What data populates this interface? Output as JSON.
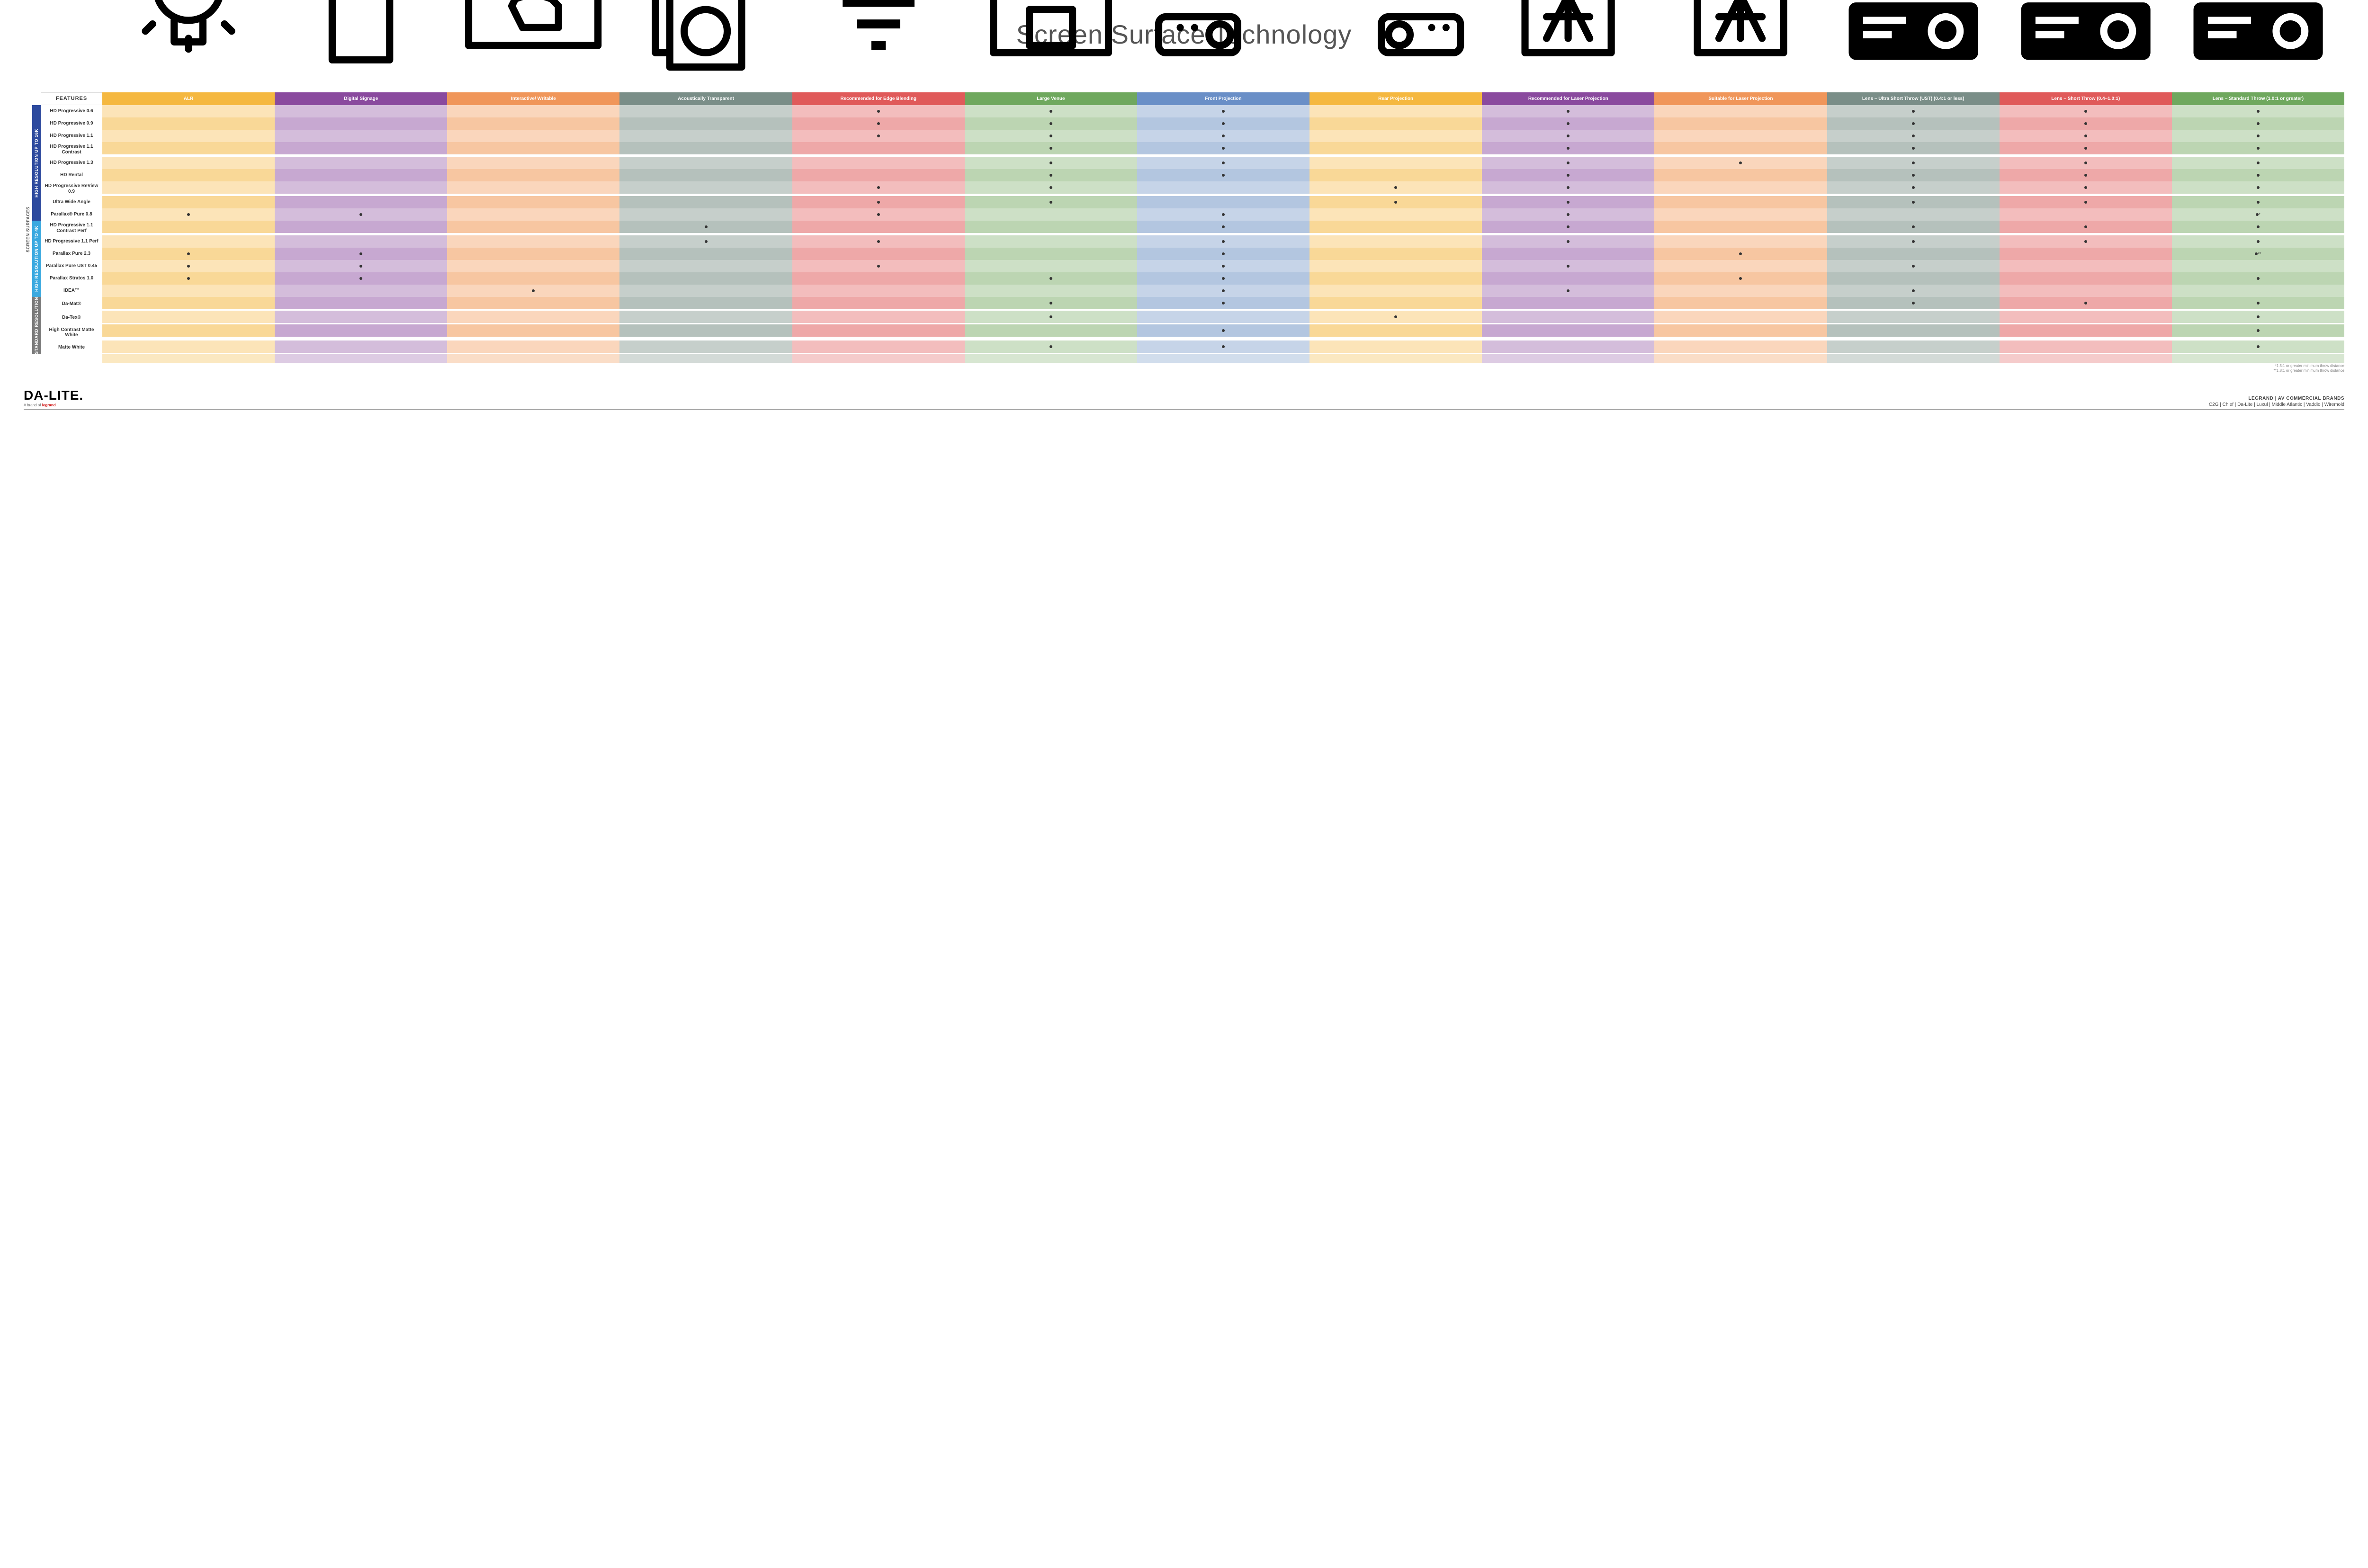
{
  "title": "Screen Surface Technology",
  "side_label_outer": "SCREEN SURFACES",
  "columns": [
    {
      "key": "alr",
      "label": "ALR",
      "color": "#f5b840",
      "icon": "bulb"
    },
    {
      "key": "signage",
      "label": "Digital Signage",
      "color": "#8a4a9e",
      "icon": "sign"
    },
    {
      "key": "writable",
      "label": "Interactive/ Writable",
      "color": "#f0965a",
      "icon": "touch"
    },
    {
      "key": "acoustic",
      "label": "Acoustically Transparent",
      "color": "#7a8e88",
      "icon": "speaker"
    },
    {
      "key": "edge",
      "label": "Recommended for Edge Blending",
      "color": "#e05a5a",
      "icon": "blend"
    },
    {
      "key": "large",
      "label": "Large Venue",
      "color": "#6fa85e",
      "icon": "venue"
    },
    {
      "key": "front",
      "label": "Front Projection",
      "color": "#6a8fc7",
      "icon": "front"
    },
    {
      "key": "rear",
      "label": "Rear Projection",
      "color": "#f5b840",
      "icon": "rear"
    },
    {
      "key": "reclaser",
      "label": "Recommended for Laser Projection",
      "color": "#8a4a9e",
      "icon": "laser3"
    },
    {
      "key": "suitlaser",
      "label": "Suitable for Laser Projection",
      "color": "#f0965a",
      "icon": "laser1"
    },
    {
      "key": "ust",
      "label": "Lens – Ultra Short Throw (UST) (0.4:1 or less)",
      "color": "#7a8e88",
      "icon": "ust"
    },
    {
      "key": "short",
      "label": "Lens – Short Throw (0.4–1.0:1)",
      "color": "#e05a5a",
      "icon": "short"
    },
    {
      "key": "std",
      "label": "Lens – Standard Throw (1.0:1 or greater)",
      "color": "#6fa85e",
      "icon": "standard"
    }
  ],
  "groups": [
    {
      "label": "HIGH RESOLUTION UP TO 16K",
      "color": "#2d4a9e"
    },
    {
      "label": "HIGH RESOLUTION UP TO 4K",
      "color": "#3aa9e0"
    },
    {
      "label": "STANDARD RESOLUTION",
      "color": "#7a7a7a"
    }
  ],
  "rows": [
    {
      "g": 0,
      "name": "HD Progressive 0.6",
      "marks": {
        "edge": "•",
        "large": "•",
        "front": "•",
        "reclaser": "•",
        "ust": "•",
        "short": "•",
        "std": "•"
      }
    },
    {
      "g": 0,
      "name": "HD Progressive 0.9",
      "marks": {
        "edge": "•",
        "large": "•",
        "front": "•",
        "reclaser": "•",
        "ust": "•",
        "short": "•",
        "std": "•"
      }
    },
    {
      "g": 0,
      "name": "HD Progressive 1.1",
      "marks": {
        "edge": "•",
        "large": "•",
        "front": "•",
        "reclaser": "•",
        "ust": "•",
        "short": "•",
        "std": "•"
      }
    },
    {
      "g": 0,
      "name": "HD Progressive 1.1 Contrast",
      "marks": {
        "large": "•",
        "front": "•",
        "reclaser": "•",
        "ust": "•",
        "short": "•",
        "std": "•"
      }
    },
    {
      "g": 0,
      "name": "HD Progressive 1.3",
      "marks": {
        "large": "•",
        "front": "•",
        "reclaser": "•",
        "suitlaser": "•",
        "ust": "•",
        "short": "•",
        "std": "•"
      }
    },
    {
      "g": 0,
      "name": "HD Rental",
      "marks": {
        "large": "•",
        "front": "•",
        "reclaser": "•",
        "ust": "•",
        "short": "•",
        "std": "•"
      }
    },
    {
      "g": 0,
      "name": "HD Progressive ReView 0.9",
      "marks": {
        "edge": "•",
        "large": "•",
        "rear": "•",
        "reclaser": "•",
        "ust": "•",
        "short": "•",
        "std": "•"
      }
    },
    {
      "g": 0,
      "name": "Ultra Wide Angle",
      "marks": {
        "edge": "•",
        "large": "•",
        "rear": "•",
        "reclaser": "•",
        "ust": "•",
        "short": "•",
        "std": "•"
      }
    },
    {
      "g": 0,
      "name": "Parallax® Pure 0.8",
      "marks": {
        "alr": "•",
        "signage": "•",
        "edge": "•",
        "front": "•",
        "reclaser": "•",
        "std": "•*"
      }
    },
    {
      "g": 1,
      "name": "HD Progressive 1.1 Contrast Perf",
      "marks": {
        "acoustic": "•",
        "front": "•",
        "reclaser": "•",
        "ust": "•",
        "short": "•",
        "std": "•"
      }
    },
    {
      "g": 1,
      "name": "HD Progressive 1.1 Perf",
      "marks": {
        "acoustic": "•",
        "edge": "•",
        "front": "•",
        "reclaser": "•",
        "ust": "•",
        "short": "•",
        "std": "•"
      }
    },
    {
      "g": 1,
      "name": "Parallax Pure 2.3",
      "marks": {
        "alr": "•",
        "signage": "•",
        "front": "•",
        "suitlaser": "•",
        "std": "•**"
      }
    },
    {
      "g": 1,
      "name": "Parallax Pure UST 0.45",
      "marks": {
        "alr": "•",
        "signage": "•",
        "edge": "•",
        "front": "•",
        "reclaser": "•",
        "ust": "•"
      }
    },
    {
      "g": 1,
      "name": "Parallax Stratos 1.0",
      "marks": {
        "alr": "•",
        "signage": "•",
        "large": "•",
        "front": "•",
        "suitlaser": "•",
        "std": "•"
      }
    },
    {
      "g": 1,
      "name": "IDEA™",
      "marks": {
        "writable": "•",
        "front": "•",
        "reclaser": "•",
        "ust": "•"
      }
    },
    {
      "g": 2,
      "name": "Da-Mat®",
      "marks": {
        "large": "•",
        "front": "•",
        "ust": "•",
        "short": "•",
        "std": "•"
      }
    },
    {
      "g": 2,
      "name": "Da-Tex®",
      "marks": {
        "large": "•",
        "rear": "•",
        "std": "•"
      }
    },
    {
      "g": 2,
      "name": "High Contrast Matte White",
      "marks": {
        "front": "•",
        "std": "•"
      }
    },
    {
      "g": 2,
      "name": "Matte White",
      "marks": {
        "large": "•",
        "front": "•",
        "std": "•"
      }
    }
  ],
  "tints": {
    "alr": [
      "#fce4b8",
      "#f9d897"
    ],
    "signage": [
      "#d4bddb",
      "#c7a8d1"
    ],
    "writable": [
      "#fad6bc",
      "#f7c6a1"
    ],
    "acoustic": [
      "#c6cfcb",
      "#b5c1bc"
    ],
    "edge": [
      "#f3bdbd",
      "#eea8a8"
    ],
    "large": [
      "#cde0c6",
      "#bcd5b2"
    ],
    "front": [
      "#c6d4e8",
      "#b3c6e0"
    ],
    "rear": [
      "#fce4b8",
      "#f9d897"
    ],
    "reclaser": [
      "#d4bddb",
      "#c7a8d1"
    ],
    "suitlaser": [
      "#fad6bc",
      "#f7c6a1"
    ],
    "ust": [
      "#c6cfcb",
      "#b5c1bc"
    ],
    "short": [
      "#f3bdbd",
      "#eea8a8"
    ],
    "std": [
      "#cde0c6",
      "#bcd5b2"
    ]
  },
  "features_label": "FEATURES",
  "footnotes": [
    "*1.5:1 or greater minimum throw distance",
    "**1.8:1 or greater minimum throw distance"
  ],
  "footer": {
    "logo": "DA-LITE.",
    "logo_sub_prefix": "A brand of ",
    "logo_sub_brand": "legrand",
    "brands_line1": "LEGRAND | AV COMMERCIAL BRANDS",
    "brands_line2": "C2G  |  Chief  |  Da-Lite  |  Luxul  |  Middle Atlantic  |  Vaddio  |  Wiremold"
  }
}
